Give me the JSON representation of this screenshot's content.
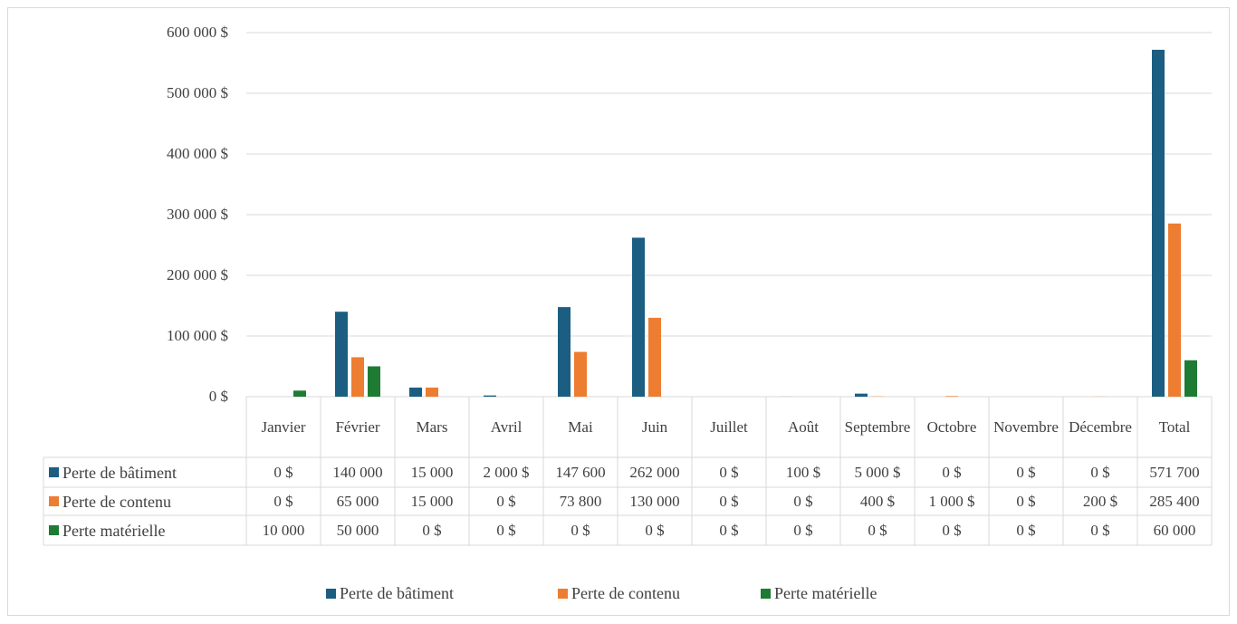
{
  "chart_data": {
    "type": "bar",
    "categories": [
      "Janvier",
      "Février",
      "Mars",
      "Avril",
      "Mai",
      "Juin",
      "Juillet",
      "Août",
      "Septembre",
      "Octobre",
      "Novembre",
      "Décembre",
      "Total"
    ],
    "series": [
      {
        "name": "Perte de bâtiment",
        "color": "#1b5e82",
        "values": [
          0,
          140000,
          15000,
          2000,
          147600,
          262000,
          0,
          100,
          5000,
          0,
          0,
          0,
          571700
        ],
        "value_labels": [
          "0 $",
          "140 000",
          "15 000",
          "2 000 $",
          "147 600",
          "262 000",
          "0 $",
          "100 $",
          "5 000 $",
          "0 $",
          "0 $",
          "0 $",
          "571 700"
        ]
      },
      {
        "name": "Perte de contenu",
        "color": "#ed7d31",
        "values": [
          0,
          65000,
          15000,
          0,
          73800,
          130000,
          0,
          0,
          400,
          1000,
          0,
          200,
          285400
        ],
        "value_labels": [
          "0 $",
          "65 000",
          "15 000",
          "0 $",
          "73 800",
          "130 000",
          "0 $",
          "0 $",
          "400 $",
          "1 000 $",
          "0 $",
          "200 $",
          "285 400"
        ]
      },
      {
        "name": "Perte matérielle",
        "color": "#1e7b34",
        "values": [
          10000,
          50000,
          0,
          0,
          0,
          0,
          0,
          0,
          0,
          0,
          0,
          0,
          60000
        ],
        "value_labels": [
          "10 000",
          "50 000",
          "0 $",
          "0 $",
          "0 $",
          "0 $",
          "0 $",
          "0 $",
          "0 $",
          "0 $",
          "0 $",
          "0 $",
          "60 000"
        ]
      }
    ],
    "ylim": [
      0,
      600000
    ],
    "yticks": [
      {
        "value": 0,
        "label": "0 $"
      },
      {
        "value": 100000,
        "label": "100 000 $"
      },
      {
        "value": 200000,
        "label": "200 000 $"
      },
      {
        "value": 300000,
        "label": "300 000 $"
      },
      {
        "value": 400000,
        "label": "400 000 $"
      },
      {
        "value": 500000,
        "label": "500 000 $"
      },
      {
        "value": 600000,
        "label": "600 000 $"
      }
    ],
    "grid": true,
    "legend": "bottom"
  }
}
